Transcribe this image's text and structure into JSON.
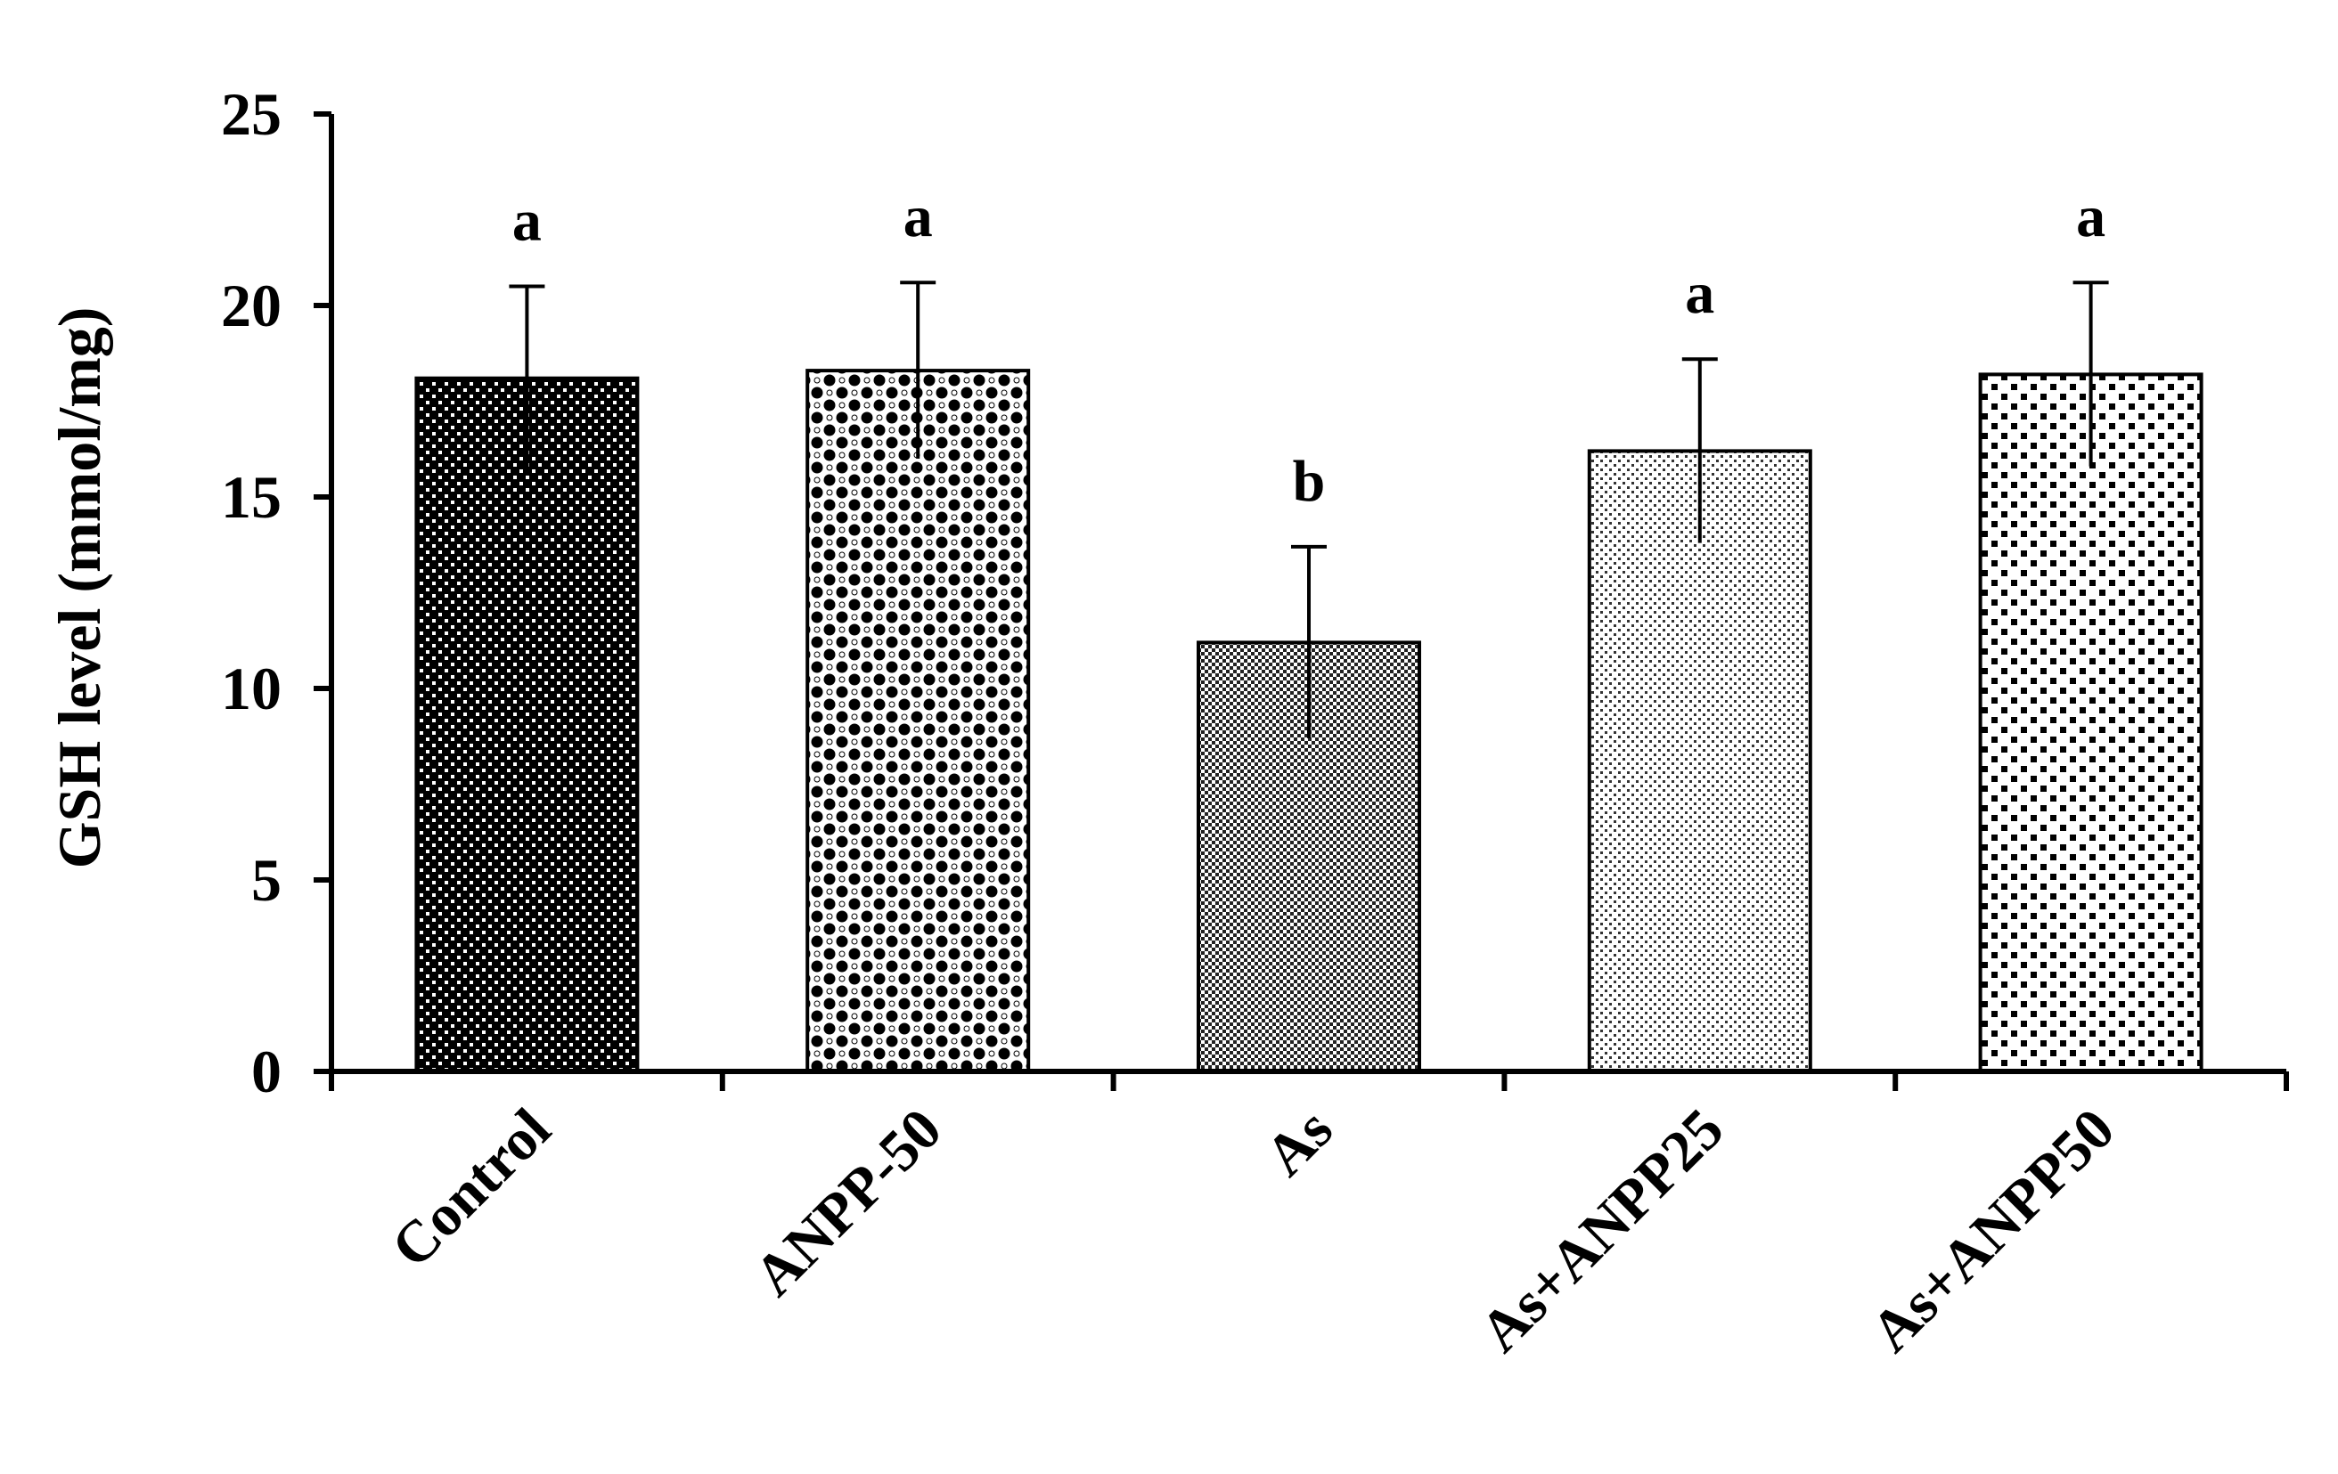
{
  "chart_data": {
    "type": "bar",
    "title": "",
    "xlabel": "",
    "ylabel": "GSH level (mmol/mg)",
    "ylim": [
      0,
      25
    ],
    "yticks": [
      "0",
      "5",
      "10",
      "15",
      "20",
      "25"
    ],
    "categories": [
      "Control",
      "ANPP-50",
      "As",
      "As+ANPP25",
      "As+ANPP50"
    ],
    "values": [
      18.1,
      18.3,
      11.2,
      16.2,
      18.2
    ],
    "errors": [
      2.4,
      2.3,
      2.5,
      2.4,
      2.4
    ],
    "significance_letters": [
      "a",
      "a",
      "b",
      "a",
      "a"
    ],
    "bar_fill_patterns": [
      "dense-dots",
      "checker-circles",
      "fine-checker",
      "light-dots",
      "scattered-squares"
    ],
    "grid": false,
    "legend": "none",
    "colors": {
      "axis": "#000000",
      "bar_outline": "#000000",
      "background": "#ffffff"
    }
  }
}
